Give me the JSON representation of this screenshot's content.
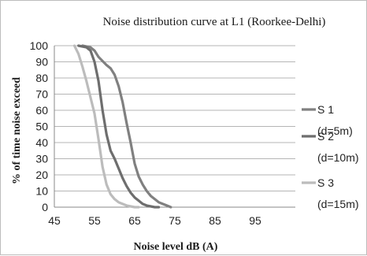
{
  "chart_data": {
    "type": "line",
    "title": "Noise distribution curve at L1 (Roorkee-Delhi)",
    "xlabel": "Noise level dB (A)",
    "ylabel": "% of time noise exceed",
    "xlim": [
      45,
      105
    ],
    "ylim": [
      0,
      100
    ],
    "x_ticks": [
      45,
      55,
      65,
      75,
      85,
      95
    ],
    "y_ticks": [
      0,
      10,
      20,
      30,
      40,
      50,
      60,
      70,
      80,
      90,
      100
    ],
    "grid": "horizontal",
    "legend_position": "right",
    "series": [
      {
        "name": "S 1",
        "sub": "(d=5m)",
        "color": "#808080",
        "x": [
          52,
          54,
          55,
          56,
          58,
          59,
          60,
          61,
          62,
          63,
          64,
          65,
          66,
          67,
          68,
          69,
          70,
          71,
          72,
          73,
          74
        ],
        "y": [
          100,
          99,
          97,
          93,
          88,
          86,
          82,
          75,
          65,
          52,
          40,
          27,
          19,
          14,
          10,
          7,
          5,
          3,
          2,
          1,
          0
        ]
      },
      {
        "name": "S 2",
        "sub": "(d=10m)",
        "color": "#6e6e6e",
        "x": [
          51,
          53,
          54,
          55,
          56,
          57,
          58,
          59,
          60,
          61,
          62,
          63,
          64,
          65,
          66,
          67,
          68,
          69,
          70,
          71
        ],
        "y": [
          100,
          99,
          97,
          90,
          78,
          60,
          45,
          35,
          30,
          24,
          18,
          13,
          9,
          6,
          4,
          2,
          1,
          0.5,
          0,
          0
        ]
      },
      {
        "name": "S 3",
        "sub": "(d=15m)",
        "color": "#bcbcbc",
        "x": [
          50,
          51,
          52,
          53,
          54,
          55,
          56,
          57,
          58,
          59,
          60,
          61,
          62,
          63,
          64,
          65,
          66
        ],
        "y": [
          100,
          95,
          87,
          78,
          68,
          58,
          42,
          25,
          14,
          8,
          5,
          3,
          2,
          1,
          0.5,
          0,
          0
        ]
      }
    ]
  }
}
